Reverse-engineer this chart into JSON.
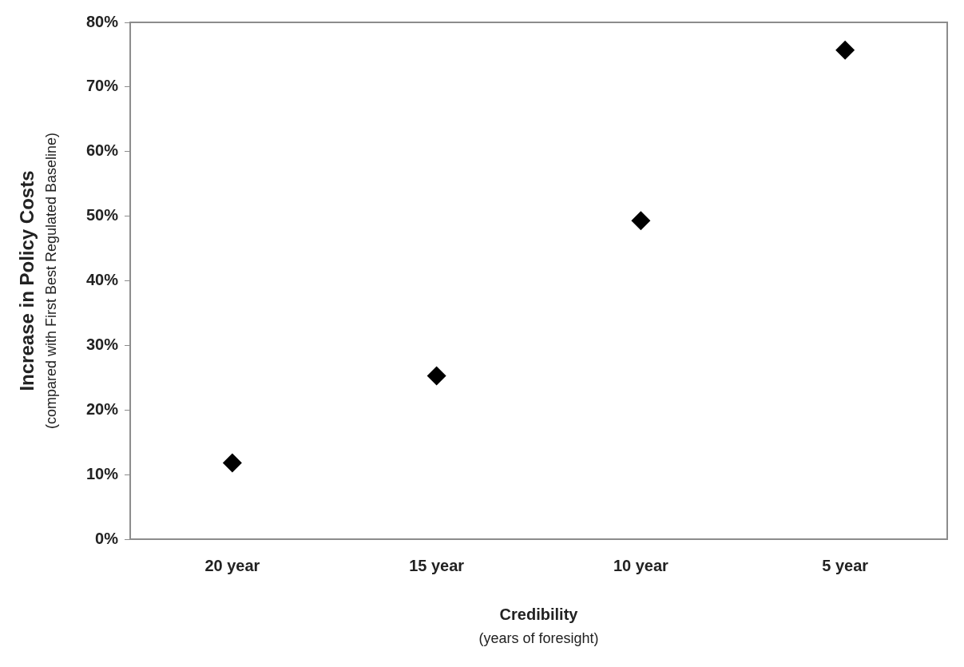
{
  "chart_data": {
    "type": "scatter",
    "xlabel": "Credibility\n(years of foresight)",
    "ylabel": "Increase in Policy Costs\n(compared with First Best Regulated Baseline)",
    "categories": [
      "20 year",
      "15 year",
      "10 year",
      "5 year"
    ],
    "series": [
      {
        "color": "#000000",
        "values": [
          11.8,
          25.3,
          49.3,
          75.7
        ]
      }
    ],
    "marker": "diamond",
    "grid": false,
    "legend": false,
    "ylim": [
      0,
      80
    ],
    "yticks": [
      {
        "value": 0,
        "label": "0%"
      },
      {
        "value": 10,
        "label": "10%"
      },
      {
        "value": 20,
        "label": "20%"
      },
      {
        "value": 30,
        "label": "30%"
      },
      {
        "value": 40,
        "label": "40%"
      },
      {
        "value": 50,
        "label": "50%"
      },
      {
        "value": 60,
        "label": "60%"
      },
      {
        "value": 70,
        "label": "70%"
      },
      {
        "value": 80,
        "label": "80%"
      }
    ]
  }
}
